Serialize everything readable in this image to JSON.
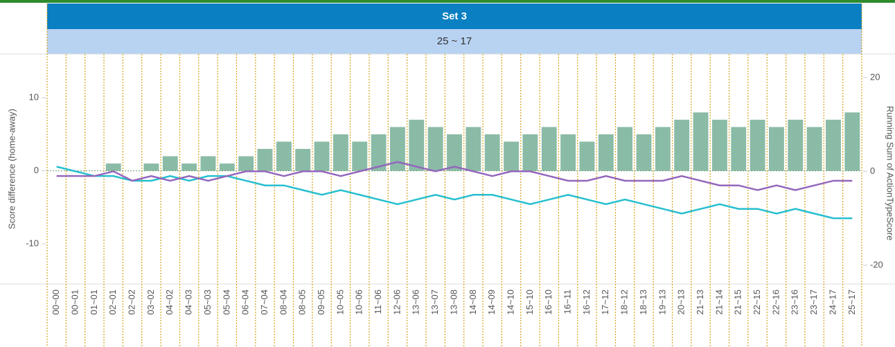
{
  "chart_data": {
    "type": "bar",
    "title": "Set 3",
    "subtitle": "25 ~ 17",
    "ylabel": "Score difference (home-away)",
    "y2label": "Running Sum of ActionTypeScore",
    "categories": [
      "00~00",
      "00~01",
      "01~01",
      "02~01",
      "02~02",
      "03~02",
      "04~02",
      "04~03",
      "05~03",
      "05~04",
      "06~04",
      "07~04",
      "08~04",
      "08~05",
      "09~05",
      "10~05",
      "10~06",
      "11~06",
      "12~06",
      "13~06",
      "13~07",
      "13~08",
      "14~08",
      "14~09",
      "14~10",
      "15~10",
      "16~10",
      "16~11",
      "16~12",
      "17~12",
      "18~12",
      "18~13",
      "19~13",
      "20~13",
      "21~13",
      "21~14",
      "21~15",
      "22~15",
      "22~16",
      "23~16",
      "23~17",
      "24~17",
      "25~17"
    ],
    "series": [
      {
        "type": "bar",
        "color": "#8abba6",
        "values": [
          0,
          0,
          0,
          1,
          0,
          1,
          2,
          1,
          2,
          1,
          2,
          3,
          4,
          3,
          4,
          5,
          4,
          5,
          6,
          7,
          6,
          5,
          6,
          5,
          4,
          5,
          6,
          5,
          4,
          5,
          6,
          5,
          6,
          7,
          8,
          7,
          6,
          7,
          6,
          7,
          6,
          7,
          8
        ]
      },
      {
        "type": "line",
        "axis": "y2",
        "color": "#26bfcf",
        "values": [
          1,
          0,
          -1,
          -1,
          -2,
          -2,
          -1,
          -2,
          -1,
          -1,
          -2,
          -3,
          -3,
          -4,
          -5,
          -4,
          -5,
          -6,
          -7,
          -6,
          -5,
          -6,
          -5,
          -5,
          -6,
          -7,
          -6,
          -5,
          -6,
          -7,
          -6,
          -7,
          -8,
          -9,
          -8,
          -7,
          -8,
          -8,
          -9,
          -8,
          -9,
          -10,
          -10
        ]
      },
      {
        "type": "line",
        "axis": "y2",
        "color": "#9467bd",
        "values": [
          -1,
          -1,
          -1,
          0,
          -2,
          -1,
          -2,
          -1,
          -2,
          -1,
          0,
          0,
          -1,
          0,
          0,
          -1,
          0,
          1,
          2,
          1,
          0,
          1,
          0,
          -1,
          0,
          0,
          -1,
          -2,
          -2,
          -1,
          -2,
          -2,
          -2,
          -1,
          -2,
          -3,
          -3,
          -4,
          -3,
          -4,
          -3,
          -2,
          -2
        ]
      }
    ],
    "ylim": [
      -15.5,
      16
    ],
    "yticks": [
      -10,
      0,
      10
    ],
    "y2lim": [
      -24,
      25
    ],
    "y2ticks": [
      -20,
      0,
      20
    ]
  }
}
